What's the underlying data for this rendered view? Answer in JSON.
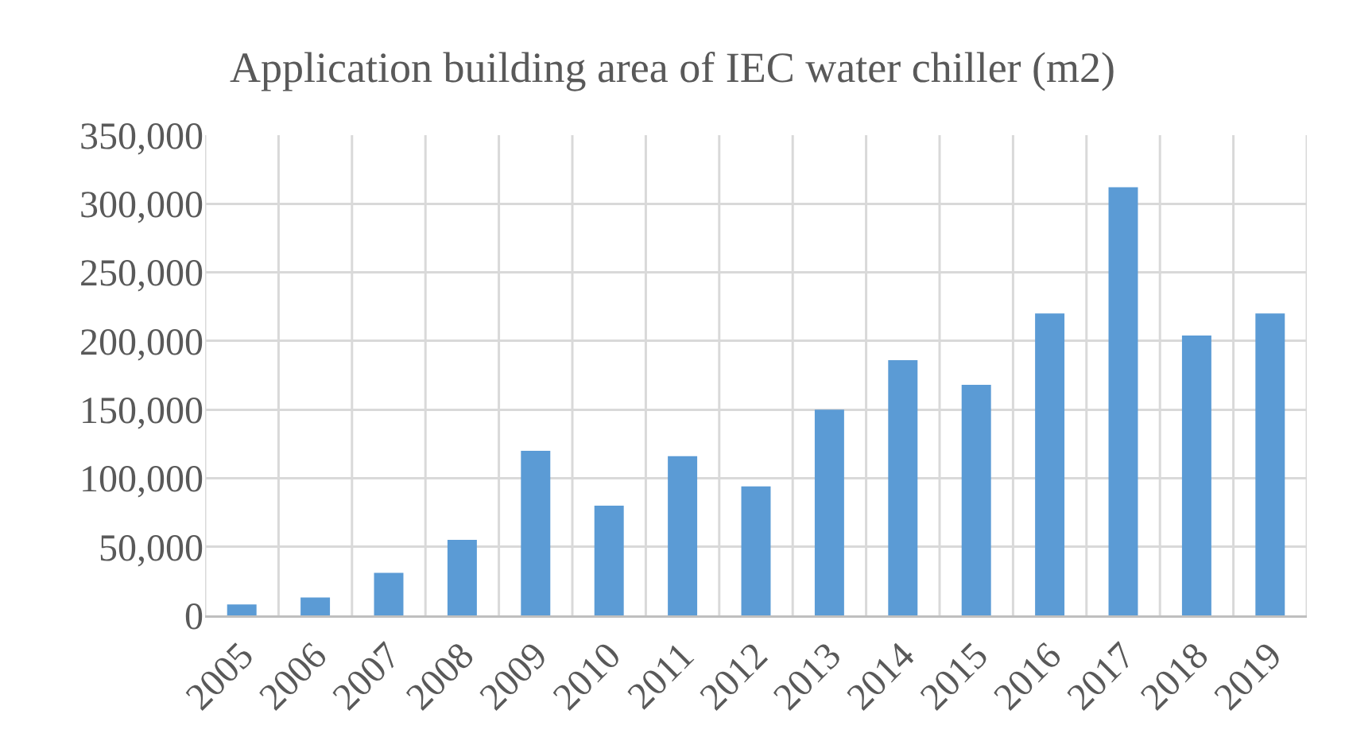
{
  "chart_data": {
    "type": "bar",
    "title": "Application building area of IEC water chiller (m2)",
    "categories": [
      "2005",
      "2006",
      "2007",
      "2008",
      "2009",
      "2010",
      "2011",
      "2012",
      "2013",
      "2014",
      "2015",
      "2016",
      "2017",
      "2018",
      "2019"
    ],
    "values": [
      8000,
      13000,
      31000,
      55000,
      120000,
      80000,
      116000,
      94000,
      150000,
      186000,
      168000,
      220000,
      312000,
      204000,
      220000
    ],
    "color": "#5b9bd5",
    "ylim": [
      0,
      350000
    ],
    "yticks": [
      {
        "value": 0,
        "label": "0"
      },
      {
        "value": 50000,
        "label": "50,000"
      },
      {
        "value": 100000,
        "label": "100,000"
      },
      {
        "value": 150000,
        "label": "150,000"
      },
      {
        "value": 200000,
        "label": "200,000"
      },
      {
        "value": 250000,
        "label": "250,000"
      },
      {
        "value": 300000,
        "label": "300,000"
      },
      {
        "value": 350000,
        "label": "350,000"
      }
    ],
    "grid": true
  }
}
